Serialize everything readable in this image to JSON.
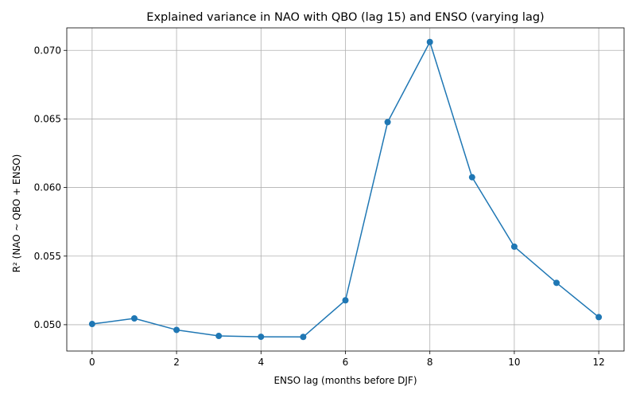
{
  "chart_data": {
    "type": "line",
    "title": "Explained variance in NAO with QBO (lag 15) and ENSO (varying lag)",
    "xlabel": "ENSO lag (months before DJF)",
    "ylabel": "R² (NAO ~ QBO + ENSO)",
    "x": [
      0,
      1,
      2,
      3,
      4,
      5,
      6,
      7,
      8,
      9,
      10,
      11,
      12
    ],
    "series": [
      {
        "name": "R²",
        "color": "#1f77b4",
        "values": [
          0.05005,
          0.05046,
          0.04962,
          0.04918,
          0.04912,
          0.04911,
          0.05178,
          0.06477,
          0.07061,
          0.06075,
          0.05569,
          0.05305,
          0.05055
        ]
      }
    ],
    "xlim": [
      -0.6,
      12.6
    ],
    "ylim": [
      0.04808,
      0.07164
    ],
    "xticks": [
      0,
      2,
      4,
      6,
      8,
      10,
      12
    ],
    "xtick_labels": [
      "0",
      "2",
      "4",
      "6",
      "8",
      "10",
      "12"
    ],
    "yticks": [
      0.05,
      0.055,
      0.06,
      0.065,
      0.07
    ],
    "ytick_labels": [
      "0.050",
      "0.055",
      "0.060",
      "0.065",
      "0.070"
    ],
    "grid": true,
    "markers": "circle"
  }
}
